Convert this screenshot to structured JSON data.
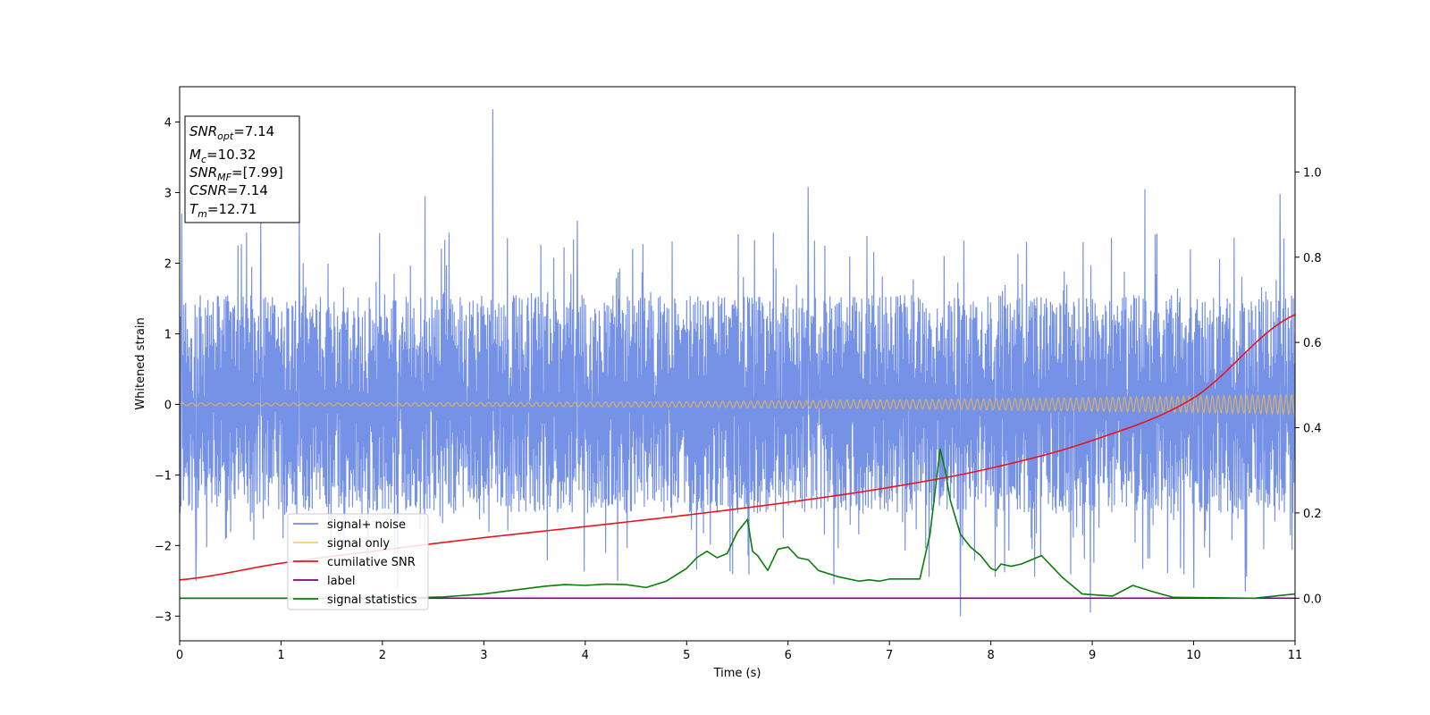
{
  "chart_data": {
    "type": "line",
    "xlabel": "Time (s)",
    "ylabel": "Whitened strain",
    "xlim": [
      0,
      11
    ],
    "ylim": [
      -3.35,
      4.5
    ],
    "y2lim": [
      -0.1,
      1.2
    ],
    "x_ticks": [
      0,
      1,
      2,
      3,
      4,
      5,
      6,
      7,
      8,
      9,
      10,
      11
    ],
    "y_ticks": [
      -3,
      -2,
      -1,
      0,
      1,
      2,
      3,
      4
    ],
    "y2_ticks": [
      0.0,
      0.2,
      0.4,
      0.6,
      0.8,
      1.0
    ],
    "x_tick_labels": [
      "0",
      "1",
      "2",
      "3",
      "4",
      "5",
      "6",
      "7",
      "8",
      "9",
      "10",
      "11"
    ],
    "y_tick_labels": [
      "−3",
      "−2",
      "−1",
      "0",
      "1",
      "2",
      "3",
      "4"
    ],
    "y2_tick_labels": [
      "0.0",
      "0.2",
      "0.4",
      "0.6",
      "0.8",
      "1.0"
    ],
    "grid": false,
    "legend_position": "lower-left",
    "info_box": [
      {
        "base": "SNR",
        "sub": "opt",
        "value": "=7.14"
      },
      {
        "base": "M",
        "sub": "c",
        "value": "=10.32"
      },
      {
        "base": "SNR",
        "sub": "MF",
        "value": "=[7.99]"
      },
      {
        "base": "CSNR",
        "sub": "",
        "value": "=7.14"
      },
      {
        "base": "T",
        "sub": "m",
        "value": "=12.71"
      }
    ],
    "series": [
      {
        "name": "signal+ noise",
        "axis": "left",
        "color": "#6f8ce6",
        "noise_envelope": {
          "typical_low": -1.55,
          "typical_high": 1.55,
          "spike_max": 4.18,
          "spike_min": -3.0
        },
        "spikes": [
          {
            "x": 0.02,
            "y": 2.7
          },
          {
            "x": 0.8,
            "y": 2.65
          },
          {
            "x": 1.18,
            "y": 2.75
          },
          {
            "x": 2.42,
            "y": 2.95
          },
          {
            "x": 3.09,
            "y": 4.18
          },
          {
            "x": 3.92,
            "y": 2.6
          },
          {
            "x": 6.2,
            "y": 3.08
          },
          {
            "x": 7.7,
            "y": -3.0
          },
          {
            "x": 8.98,
            "y": -2.95
          },
          {
            "x": 9.52,
            "y": 3.05
          },
          {
            "x": 10.85,
            "y": 2.98
          },
          {
            "x": 0.16,
            "y": -2.5
          },
          {
            "x": 2.15,
            "y": -2.6
          },
          {
            "x": 4.32,
            "y": -2.5
          },
          {
            "x": 6.45,
            "y": -2.55
          },
          {
            "x": 10.0,
            "y": -2.6
          },
          {
            "x": 10.51,
            "y": -2.65
          }
        ]
      },
      {
        "name": "signal only",
        "axis": "left",
        "color": "#f5b942",
        "amplitude_start": 0.02,
        "amplitude_end": 0.14
      },
      {
        "name": "cumilative SNR",
        "axis": "right",
        "color": "#e8151b",
        "x": [
          0,
          1,
          2,
          3,
          4,
          5,
          6,
          7,
          8,
          9,
          10,
          11
        ],
        "y": [
          0.043,
          0.082,
          0.113,
          0.142,
          0.168,
          0.195,
          0.225,
          0.26,
          0.305,
          0.37,
          0.47,
          0.665
        ]
      },
      {
        "name": "label",
        "axis": "right",
        "color": "#800080",
        "x": [
          0,
          11
        ],
        "y": [
          0.0,
          0.0
        ]
      },
      {
        "name": "signal statistics",
        "axis": "right",
        "color": "#0a7d0a",
        "x": [
          0,
          1,
          2,
          2.6,
          3.0,
          3.2,
          3.4,
          3.6,
          3.8,
          4.0,
          4.2,
          4.4,
          4.6,
          4.8,
          5.0,
          5.1,
          5.2,
          5.3,
          5.4,
          5.5,
          5.6,
          5.65,
          5.7,
          5.8,
          5.9,
          6.0,
          6.1,
          6.2,
          6.3,
          6.5,
          6.7,
          6.8,
          6.9,
          7.0,
          7.2,
          7.3,
          7.4,
          7.5,
          7.55,
          7.6,
          7.7,
          7.8,
          7.9,
          8.0,
          8.05,
          8.1,
          8.2,
          8.3,
          8.4,
          8.5,
          8.6,
          8.7,
          8.9,
          9.2,
          9.4,
          9.6,
          9.8,
          10.2,
          10.6,
          11
        ],
        "y": [
          0.0,
          0.0,
          0.0,
          0.003,
          0.01,
          0.016,
          0.022,
          0.028,
          0.032,
          0.03,
          0.033,
          0.032,
          0.025,
          0.04,
          0.07,
          0.095,
          0.11,
          0.095,
          0.105,
          0.155,
          0.185,
          0.11,
          0.1,
          0.065,
          0.115,
          0.12,
          0.095,
          0.09,
          0.065,
          0.05,
          0.04,
          0.043,
          0.04,
          0.045,
          0.045,
          0.045,
          0.15,
          0.35,
          0.3,
          0.23,
          0.15,
          0.12,
          0.1,
          0.07,
          0.065,
          0.08,
          0.075,
          0.08,
          0.09,
          0.1,
          0.075,
          0.05,
          0.01,
          0.005,
          0.03,
          0.015,
          0.002,
          0.001,
          0.0,
          0.01
        ]
      }
    ]
  }
}
